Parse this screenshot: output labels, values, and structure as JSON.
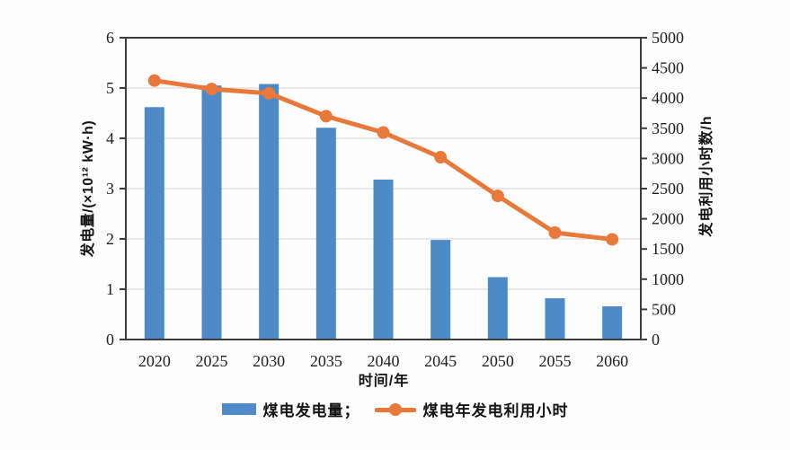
{
  "chart_data": {
    "type": "bar+line dual-axis combo",
    "categories": [
      "2020",
      "2025",
      "2030",
      "2035",
      "2040",
      "2045",
      "2050",
      "2055",
      "2060"
    ],
    "series": [
      {
        "name": "煤电发电量",
        "type": "bar",
        "axis": "left",
        "color": "#4E8AC8",
        "values": [
          4.62,
          5.05,
          5.08,
          4.21,
          3.18,
          1.98,
          1.24,
          0.82,
          0.66
        ]
      },
      {
        "name": "煤电年发电利用小时",
        "type": "line",
        "axis": "right",
        "color": "#E8793A",
        "values": [
          4290,
          4150,
          4080,
          3700,
          3430,
          3020,
          2380,
          1770,
          1660
        ]
      }
    ],
    "left_axis": {
      "label": "发电量/(×10¹² kW·h)",
      "min": 0,
      "max": 6,
      "step": 1
    },
    "right_axis": {
      "label": "发电利用小时数/h",
      "min": 0,
      "max": 5000,
      "step": 500
    },
    "xlabel": "时间/年",
    "legend": {
      "position": "bottom",
      "items": [
        "煤电发电量；",
        "煤电年发电利用小时"
      ]
    },
    "layout": {
      "grid": "horizontal gridlines at left-axis integers 1-5",
      "plot_border": "full box"
    },
    "colors": {
      "axis": "#3D3D3D",
      "grid": "#DBDBDB",
      "text": "#1F1F1F"
    }
  }
}
